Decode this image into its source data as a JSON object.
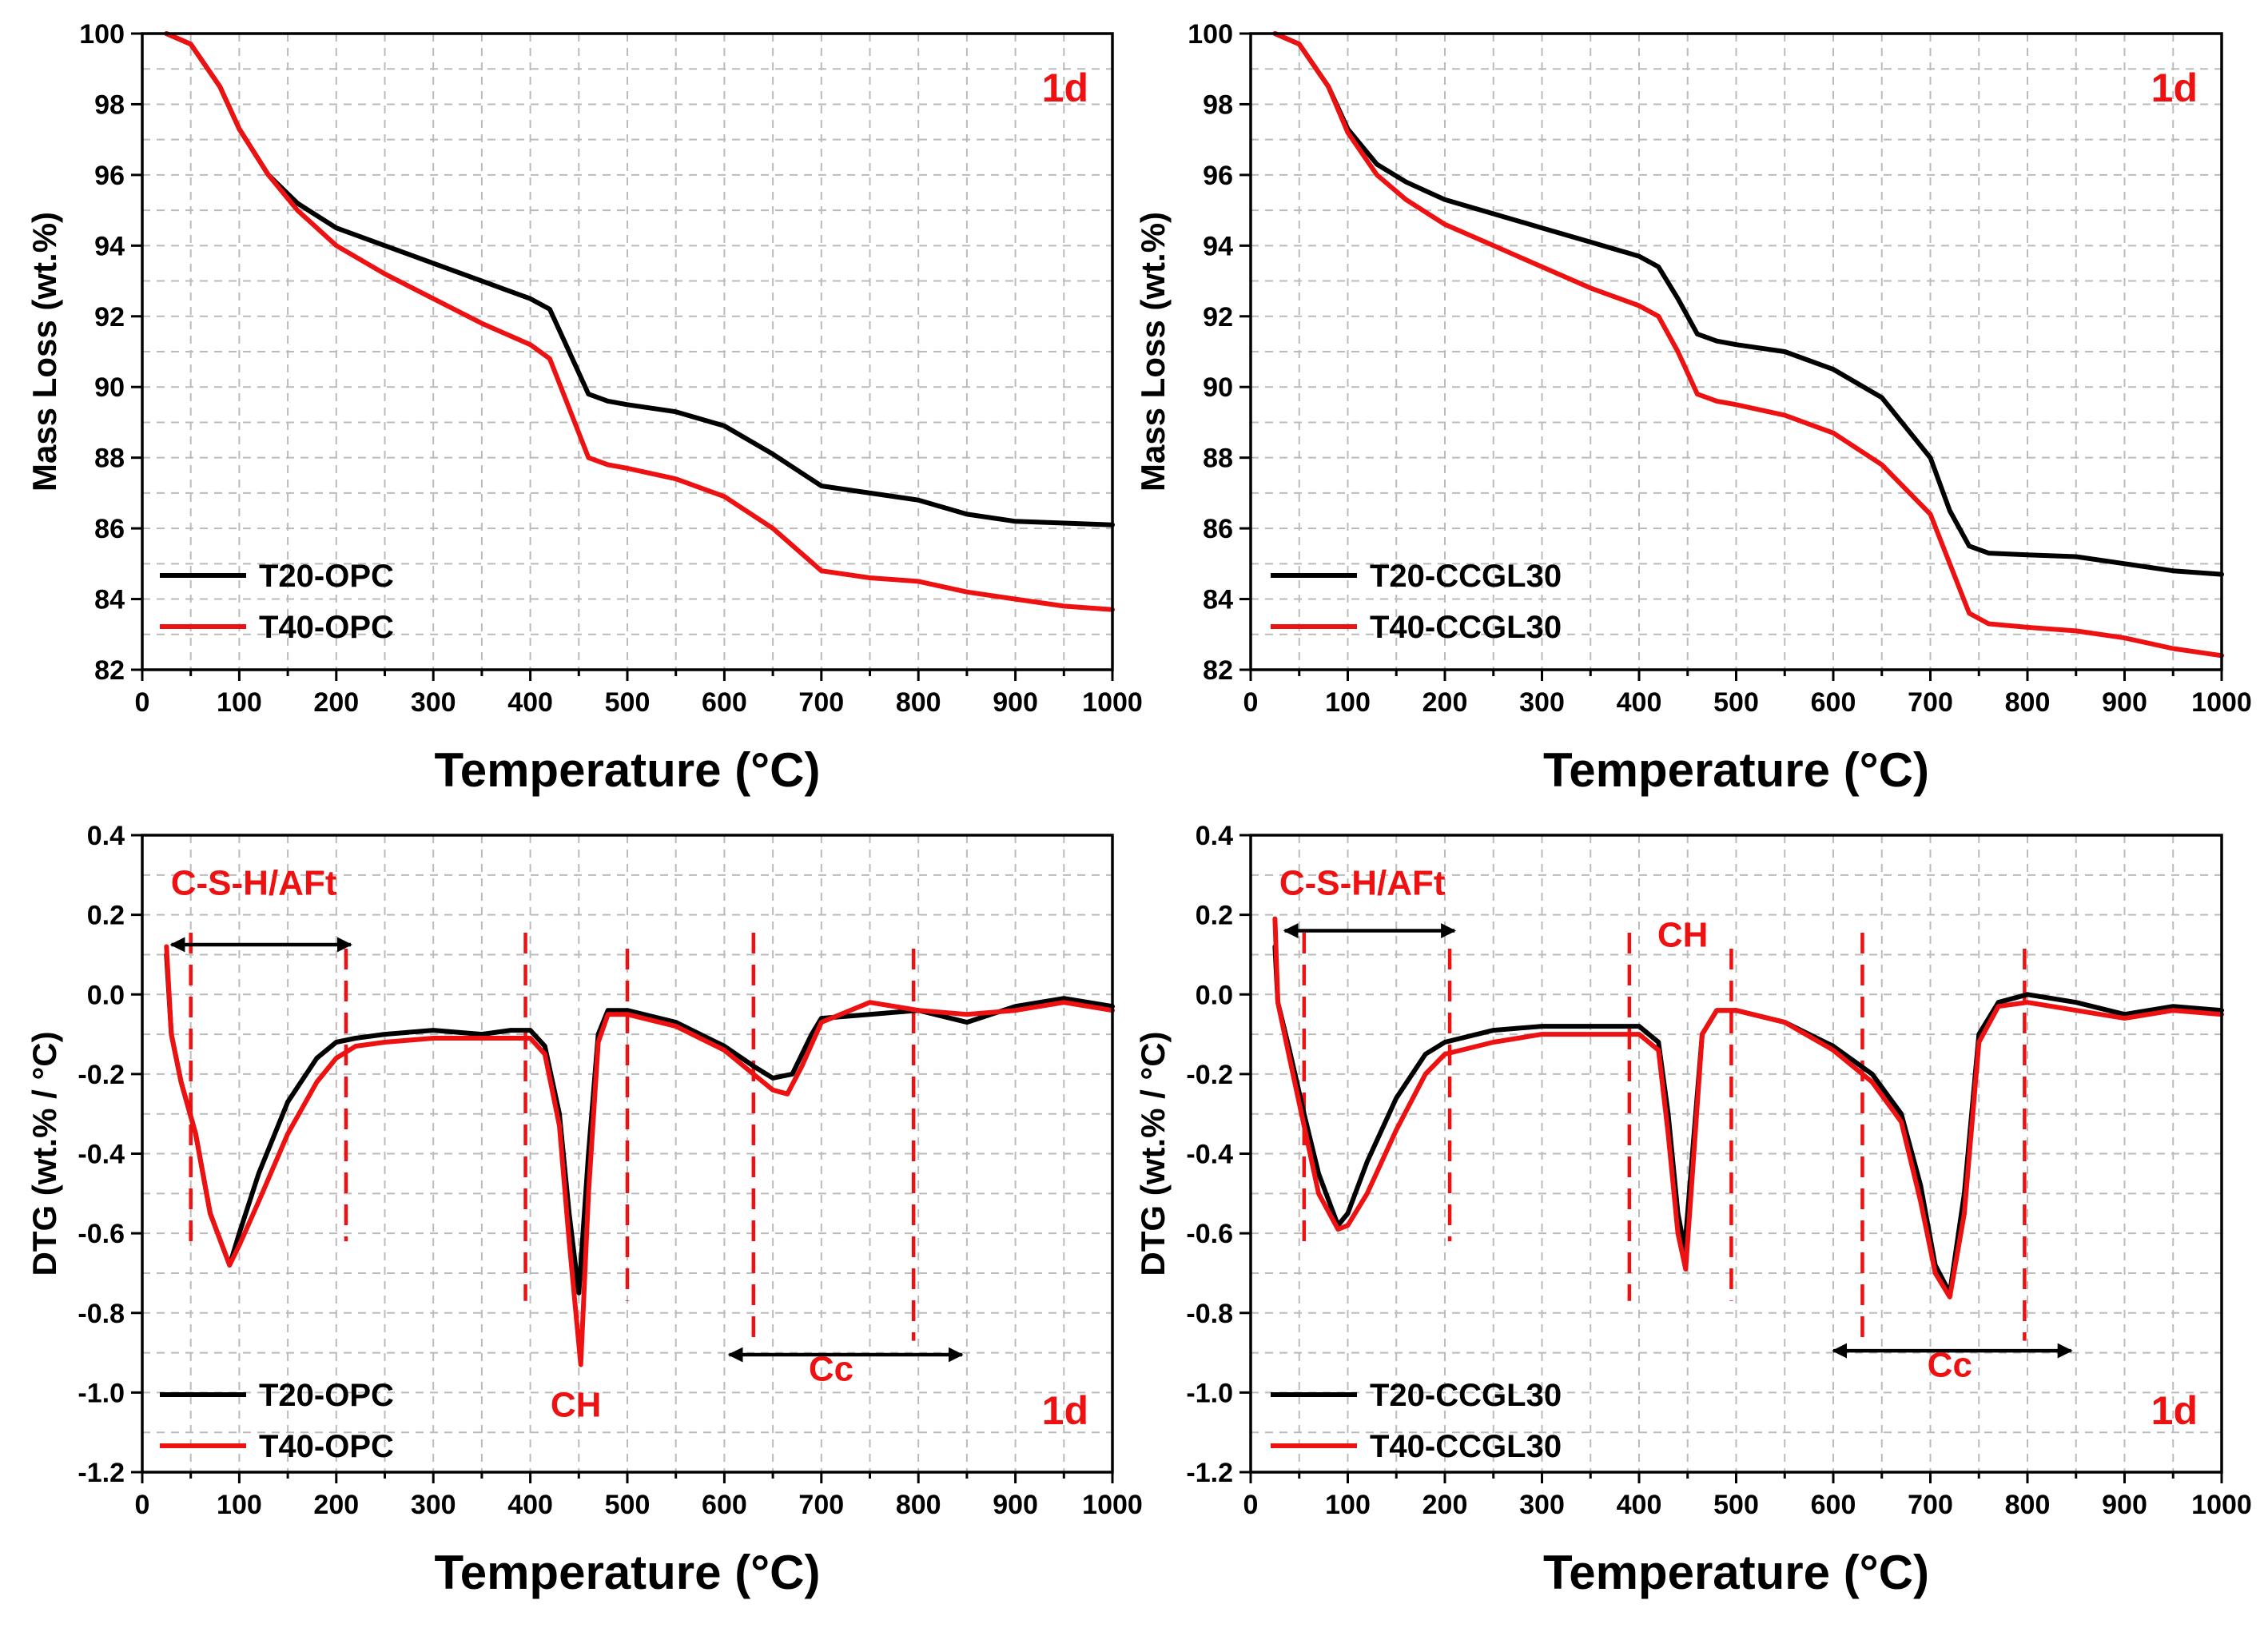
{
  "colors": {
    "t20": "#000000",
    "t40": "#ee1111",
    "annotation": "#ee1111",
    "grid": "#bbbbbb"
  },
  "chart_data": [
    {
      "type": "line",
      "xlabel": "Temperature (°C)",
      "ylabel": "Mass Loss (wt.%)",
      "xlim": [
        0,
        1000
      ],
      "ylim": [
        82,
        100
      ],
      "xticks": [
        0,
        100,
        200,
        300,
        400,
        500,
        600,
        700,
        800,
        900,
        1000
      ],
      "yticks": [
        82,
        84,
        86,
        88,
        90,
        92,
        94,
        96,
        98,
        100
      ],
      "grid": true,
      "legend": "bottom-left",
      "label": "1d",
      "series": [
        {
          "name": "T20-OPC",
          "color": "#000000",
          "x": [
            25,
            50,
            80,
            100,
            130,
            160,
            200,
            250,
            300,
            350,
            400,
            420,
            440,
            460,
            480,
            500,
            550,
            600,
            650,
            700,
            750,
            800,
            850,
            900,
            950,
            1000
          ],
          "y": [
            100,
            99.7,
            98.5,
            97.3,
            96.0,
            95.2,
            94.5,
            94.0,
            93.5,
            93.0,
            92.5,
            92.2,
            91.0,
            89.8,
            89.6,
            89.5,
            89.3,
            88.9,
            88.1,
            87.2,
            87.0,
            86.8,
            86.4,
            86.2,
            86.15,
            86.1
          ]
        },
        {
          "name": "T40-OPC",
          "color": "#ee1111",
          "x": [
            25,
            50,
            80,
            100,
            130,
            160,
            200,
            250,
            300,
            350,
            400,
            420,
            440,
            460,
            480,
            500,
            550,
            600,
            650,
            700,
            750,
            800,
            850,
            900,
            950,
            1000
          ],
          "y": [
            100,
            99.7,
            98.5,
            97.3,
            96.0,
            95.0,
            94.0,
            93.2,
            92.5,
            91.8,
            91.2,
            90.8,
            89.4,
            88.0,
            87.8,
            87.7,
            87.4,
            86.9,
            86.0,
            84.8,
            84.6,
            84.5,
            84.2,
            84.0,
            83.8,
            83.7
          ]
        }
      ]
    },
    {
      "type": "line",
      "xlabel": "Temperature (°C)",
      "ylabel": "Mass Loss (wt.%)",
      "xlim": [
        0,
        1000
      ],
      "ylim": [
        82,
        100
      ],
      "xticks": [
        0,
        100,
        200,
        300,
        400,
        500,
        600,
        700,
        800,
        900,
        1000
      ],
      "yticks": [
        82,
        84,
        86,
        88,
        90,
        92,
        94,
        96,
        98,
        100
      ],
      "grid": true,
      "legend": "bottom-left",
      "label": "1d",
      "series": [
        {
          "name": "T20-CCGL30",
          "color": "#000000",
          "x": [
            25,
            50,
            80,
            100,
            130,
            160,
            200,
            250,
            300,
            350,
            400,
            420,
            440,
            460,
            480,
            500,
            550,
            600,
            650,
            700,
            720,
            740,
            760,
            800,
            850,
            900,
            950,
            1000
          ],
          "y": [
            100,
            99.7,
            98.5,
            97.3,
            96.3,
            95.8,
            95.3,
            94.9,
            94.5,
            94.1,
            93.7,
            93.4,
            92.5,
            91.5,
            91.3,
            91.2,
            91.0,
            90.5,
            89.7,
            88.0,
            86.5,
            85.5,
            85.3,
            85.25,
            85.2,
            85.0,
            84.8,
            84.7
          ]
        },
        {
          "name": "T40-CCGL30",
          "color": "#ee1111",
          "x": [
            25,
            50,
            80,
            100,
            130,
            160,
            200,
            250,
            300,
            350,
            400,
            420,
            440,
            460,
            480,
            500,
            550,
            600,
            650,
            700,
            720,
            740,
            760,
            800,
            850,
            900,
            950,
            1000
          ],
          "y": [
            100,
            99.7,
            98.5,
            97.2,
            96.0,
            95.3,
            94.6,
            94.0,
            93.4,
            92.8,
            92.3,
            92.0,
            91.0,
            89.8,
            89.6,
            89.5,
            89.2,
            88.7,
            87.8,
            86.4,
            85.0,
            83.6,
            83.3,
            83.2,
            83.1,
            82.9,
            82.6,
            82.4
          ]
        }
      ]
    },
    {
      "type": "line",
      "xlabel": "Temperature (°C)",
      "ylabel": "DTG (wt.% / °C)",
      "xlim": [
        0,
        1000
      ],
      "ylim": [
        -1.2,
        0.4
      ],
      "xticks": [
        0,
        100,
        200,
        300,
        400,
        500,
        600,
        700,
        800,
        900,
        1000
      ],
      "yticks": [
        -1.2,
        -1.0,
        -0.8,
        -0.6,
        -0.4,
        -0.2,
        0.0,
        0.2,
        0.4
      ],
      "grid": true,
      "legend": "bottom-left",
      "label": "1d",
      "dashed_lines": [
        50,
        210,
        395,
        500,
        630,
        795
      ],
      "annotations": [
        {
          "text": "C-S-H/AFt",
          "x": 115,
          "y": 0.25
        },
        {
          "text": "CH",
          "x": 447,
          "y": -1.06
        },
        {
          "text": "Cc",
          "x": 710,
          "y": -0.97
        }
      ],
      "arrows": [
        {
          "from": 30,
          "to": 215,
          "y": 0.125,
          "color": "#000000"
        },
        {
          "from": 605,
          "to": 845,
          "y": -0.905,
          "color": "#000000"
        }
      ],
      "series": [
        {
          "name": "T20-OPC",
          "color": "#000000",
          "x": [
            25,
            30,
            40,
            55,
            70,
            90,
            100,
            120,
            150,
            180,
            200,
            220,
            250,
            300,
            350,
            380,
            400,
            415,
            430,
            440,
            450,
            460,
            470,
            480,
            500,
            550,
            600,
            630,
            650,
            670,
            690,
            700,
            750,
            800,
            850,
            900,
            950,
            1000
          ],
          "y": [
            0.1,
            -0.1,
            -0.22,
            -0.35,
            -0.55,
            -0.68,
            -0.6,
            -0.45,
            -0.27,
            -0.16,
            -0.12,
            -0.11,
            -0.1,
            -0.09,
            -0.1,
            -0.09,
            -0.09,
            -0.13,
            -0.3,
            -0.55,
            -0.75,
            -0.4,
            -0.1,
            -0.04,
            -0.04,
            -0.07,
            -0.13,
            -0.18,
            -0.21,
            -0.2,
            -0.1,
            -0.06,
            -0.05,
            -0.04,
            -0.07,
            -0.03,
            -0.01,
            -0.03
          ]
        },
        {
          "name": "T40-OPC",
          "color": "#ee1111",
          "x": [
            25,
            30,
            40,
            55,
            70,
            90,
            100,
            120,
            150,
            180,
            200,
            220,
            250,
            300,
            350,
            380,
            400,
            415,
            430,
            440,
            452,
            460,
            470,
            480,
            500,
            550,
            600,
            630,
            650,
            665,
            680,
            700,
            750,
            800,
            850,
            900,
            950,
            1000
          ],
          "y": [
            0.12,
            -0.1,
            -0.22,
            -0.35,
            -0.55,
            -0.68,
            -0.63,
            -0.52,
            -0.35,
            -0.22,
            -0.16,
            -0.13,
            -0.12,
            -0.11,
            -0.11,
            -0.11,
            -0.11,
            -0.15,
            -0.33,
            -0.62,
            -0.93,
            -0.5,
            -0.12,
            -0.05,
            -0.05,
            -0.08,
            -0.14,
            -0.2,
            -0.24,
            -0.25,
            -0.18,
            -0.07,
            -0.02,
            -0.04,
            -0.05,
            -0.04,
            -0.02,
            -0.04
          ]
        }
      ]
    },
    {
      "type": "line",
      "xlabel": "Temperature (°C)",
      "ylabel": "DTG (wt.% / °C)",
      "xlim": [
        0,
        1000
      ],
      "ylim": [
        -1.2,
        0.4
      ],
      "xticks": [
        0,
        100,
        200,
        300,
        400,
        500,
        600,
        700,
        800,
        900,
        1000
      ],
      "yticks": [
        -1.2,
        -1.0,
        -0.8,
        -0.6,
        -0.4,
        -0.2,
        0.0,
        0.2,
        0.4
      ],
      "grid": true,
      "legend": "bottom-left",
      "label": "1d",
      "dashed_lines": [
        55,
        205,
        390,
        495,
        630,
        797
      ],
      "annotations": [
        {
          "text": "C-S-H/AFt",
          "x": 115,
          "y": 0.25
        },
        {
          "text": "CH",
          "x": 445,
          "y": 0.12
        },
        {
          "text": "Cc",
          "x": 720,
          "y": -0.96
        }
      ],
      "arrows": [
        {
          "from": 35,
          "to": 210,
          "y": 0.16,
          "color": "#000000"
        },
        {
          "from": 600,
          "to": 845,
          "y": -0.895,
          "color": "#000000"
        }
      ],
      "series": [
        {
          "name": "T20-CCGL30",
          "color": "#000000",
          "x": [
            25,
            28,
            40,
            55,
            70,
            90,
            100,
            120,
            150,
            180,
            200,
            250,
            300,
            350,
            400,
            420,
            430,
            440,
            447,
            455,
            465,
            480,
            500,
            550,
            600,
            640,
            670,
            690,
            705,
            720,
            735,
            750,
            770,
            800,
            850,
            900,
            950,
            1000
          ],
          "y": [
            0.12,
            -0.02,
            -0.14,
            -0.3,
            -0.45,
            -0.58,
            -0.55,
            -0.42,
            -0.26,
            -0.15,
            -0.12,
            -0.09,
            -0.08,
            -0.08,
            -0.08,
            -0.12,
            -0.3,
            -0.55,
            -0.64,
            -0.4,
            -0.1,
            -0.04,
            -0.04,
            -0.07,
            -0.13,
            -0.2,
            -0.3,
            -0.48,
            -0.68,
            -0.75,
            -0.5,
            -0.1,
            -0.02,
            0.0,
            -0.02,
            -0.05,
            -0.03,
            -0.04
          ]
        },
        {
          "name": "T40-CCGL30",
          "color": "#ee1111",
          "x": [
            25,
            28,
            40,
            55,
            70,
            90,
            100,
            120,
            150,
            180,
            200,
            250,
            300,
            350,
            400,
            420,
            430,
            440,
            448,
            455,
            465,
            480,
            500,
            550,
            600,
            640,
            670,
            690,
            705,
            720,
            735,
            750,
            770,
            800,
            850,
            900,
            950,
            1000
          ],
          "y": [
            0.19,
            -0.02,
            -0.16,
            -0.33,
            -0.5,
            -0.59,
            -0.58,
            -0.5,
            -0.34,
            -0.2,
            -0.15,
            -0.12,
            -0.1,
            -0.1,
            -0.1,
            -0.14,
            -0.35,
            -0.6,
            -0.69,
            -0.45,
            -0.1,
            -0.04,
            -0.04,
            -0.07,
            -0.14,
            -0.22,
            -0.32,
            -0.52,
            -0.7,
            -0.76,
            -0.55,
            -0.12,
            -0.03,
            -0.02,
            -0.04,
            -0.06,
            -0.04,
            -0.05
          ]
        }
      ]
    }
  ]
}
